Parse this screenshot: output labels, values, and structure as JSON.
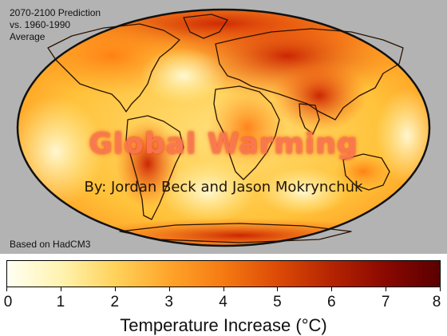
{
  "map": {
    "info_lines": [
      "2070-2100 Prediction",
      "vs. 1960-1990",
      "Average"
    ],
    "source": "Based on HadCM3",
    "colors": {
      "frame": "#b3b3b3",
      "land_outline": "#2a1200",
      "low_warming": "#fff6c8",
      "high_warming": "#7a0000"
    }
  },
  "slide": {
    "title": "Global Warming",
    "subtitle": "By: Jordan Beck and Jason Mokrynchuk"
  },
  "legend": {
    "ticks": [
      "0",
      "1",
      "2",
      "3",
      "4",
      "5",
      "6",
      "7",
      "8"
    ],
    "range": [
      0,
      8
    ],
    "label": "Temperature Increase (°C)",
    "gradient": [
      "#fffff2",
      "#fff3b0",
      "#ffd25a",
      "#ffa42a",
      "#f57a12",
      "#dc4a06",
      "#b52402",
      "#8a0800",
      "#5a0000"
    ]
  }
}
